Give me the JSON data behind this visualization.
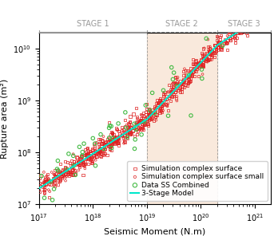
{
  "title": "",
  "xlabel": "Seismic Moment (N.m)",
  "ylabel": "Rupture area (m²)",
  "xlim_log": [
    17,
    21.3
  ],
  "ylim_log": [
    7,
    10.3
  ],
  "stage1_label": "STAGE 1",
  "stage2_label": "STAGE 2",
  "stage3_label": "STAGE 3",
  "stage2_xmin_log": 19.0,
  "stage2_xmax_log": 20.3,
  "stage_bg_color": "#f5d8c0",
  "stage_bg_alpha": 0.55,
  "legend_labels": [
    "Simulation complex surface",
    "Simulation complex surface small",
    "Data SS Combined",
    "3-Stage Model"
  ],
  "color_sim_large": "#dd2020",
  "color_sim_small": "#dd2020",
  "color_data": "#44bb44",
  "color_model": "#00e8cc",
  "stage_line_color": "#999999",
  "stage_text_color": "#999999",
  "stage_text_size": 7,
  "axis_label_size": 8,
  "tick_label_size": 7,
  "legend_fontsize": 6.5,
  "model_bp1_log": 19.0,
  "model_bp2_log": 20.3,
  "model_s1": 0.6667,
  "model_b1": -4.03,
  "model_s3": 0.6667,
  "model_b3": -3.47
}
